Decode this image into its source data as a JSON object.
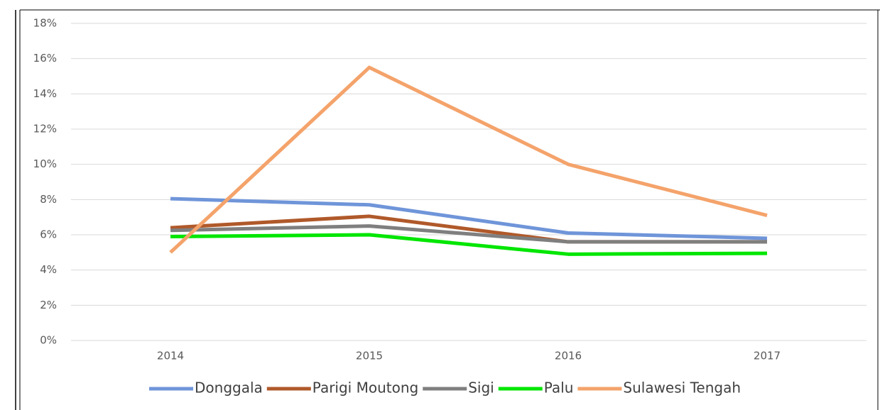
{
  "chart_data": {
    "type": "line",
    "categories": [
      "2014",
      "2015",
      "2016",
      "2017"
    ],
    "series": [
      {
        "name": "Donggala",
        "color": "#6f95d9",
        "values": [
          8.05,
          7.7,
          6.1,
          5.8
        ]
      },
      {
        "name": "Parigi Moutong",
        "color": "#b0592a",
        "values": [
          6.4,
          7.05,
          5.6,
          5.6
        ]
      },
      {
        "name": "Sigi",
        "color": "#7f7f7f",
        "values": [
          6.25,
          6.5,
          5.6,
          5.6
        ]
      },
      {
        "name": "Palu",
        "color": "#00e600",
        "values": [
          5.9,
          6.0,
          4.9,
          4.95
        ]
      },
      {
        "name": "Sulawesi Tengah",
        "color": "#f4a36b",
        "values": [
          5.0,
          15.5,
          10.0,
          7.1
        ]
      }
    ],
    "ylim": [
      0,
      18
    ],
    "yticks": [
      {
        "value": 0,
        "label": "0%"
      },
      {
        "value": 2,
        "label": "2%"
      },
      {
        "value": 4,
        "label": "4%"
      },
      {
        "value": 6,
        "label": "6%"
      },
      {
        "value": 8,
        "label": "8%"
      },
      {
        "value": 10,
        "label": "10%"
      },
      {
        "value": 12,
        "label": "12%"
      },
      {
        "value": 14,
        "label": "14%"
      },
      {
        "value": 16,
        "label": "16%"
      },
      {
        "value": 18,
        "label": "18%"
      }
    ],
    "grid": true,
    "legend": "bottom"
  }
}
